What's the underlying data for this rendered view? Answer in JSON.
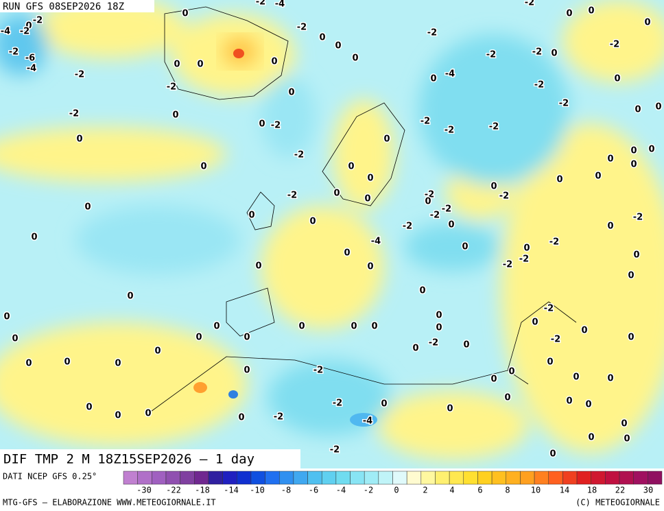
{
  "header": "RUN GFS 08SEP2026 18Z",
  "title": "DIF TMP 2 M 18Z15SEP2026 — 1 day",
  "source": "DATI NCEP GFS 0.25°",
  "colorbar": {
    "colors": [
      "#c080d0",
      "#b070c8",
      "#a060c0",
      "#9050b0",
      "#8040a0",
      "#702890",
      "#3020a0",
      "#2020c0",
      "#1030d0",
      "#1050e0",
      "#2070f0",
      "#3090f0",
      "#40a8f0",
      "#50c0f0",
      "#60d0f0",
      "#70dcf0",
      "#88e4f4",
      "#a0ecf6",
      "#c0f4f8",
      "#e0fafb",
      "#fffbd0",
      "#fff8a0",
      "#fff070",
      "#ffe850",
      "#ffe030",
      "#ffd020",
      "#ffc020",
      "#ffb020",
      "#ffa020",
      "#ff8020",
      "#ff6020",
      "#f04020",
      "#e02020",
      "#d01830",
      "#c01040",
      "#b01050",
      "#a01060",
      "#901060"
    ],
    "ticks": [
      -30,
      -22,
      -18,
      -14,
      -10,
      -8,
      -6,
      -4,
      -2,
      0,
      2,
      4,
      6,
      8,
      10,
      14,
      18,
      22,
      30
    ]
  },
  "contour_labels": [
    0,
    -2,
    -4,
    -2,
    0,
    -4,
    -2,
    -2,
    -6,
    -4,
    -2,
    -2,
    0,
    0,
    0,
    0,
    0,
    0,
    -2,
    0,
    -2,
    0,
    0,
    -2,
    0,
    -2,
    0,
    -2,
    0,
    0,
    0,
    0,
    0,
    0,
    0,
    0,
    0,
    0,
    0,
    0,
    0,
    0,
    0,
    0,
    -2,
    0,
    0,
    -2,
    -2,
    -4,
    0,
    0,
    -2,
    0,
    0,
    0,
    -2,
    -4,
    -2,
    -2,
    0,
    -2,
    -2,
    -2,
    -2,
    -2,
    0,
    -2,
    0,
    0,
    0,
    -2,
    0,
    0,
    0,
    0,
    0,
    0,
    0,
    0,
    -2,
    0,
    0,
    0,
    0,
    0,
    -2,
    0,
    -2,
    -2,
    0,
    -2,
    -4,
    0,
    0,
    -2,
    -2,
    -2,
    0,
    0,
    -2,
    0,
    0,
    0,
    0,
    0,
    0,
    0,
    -2,
    0,
    0,
    -2,
    0,
    -2,
    0,
    0,
    0,
    0,
    0,
    0,
    0,
    0,
    0,
    0,
    0,
    0,
    0,
    0,
    0,
    0,
    0
  ],
  "footer": {
    "left": "MTG-GFS — ELABORAZIONE WWW.METEOGIORNALE.IT",
    "right": "(C) METEOGIORNALE"
  }
}
